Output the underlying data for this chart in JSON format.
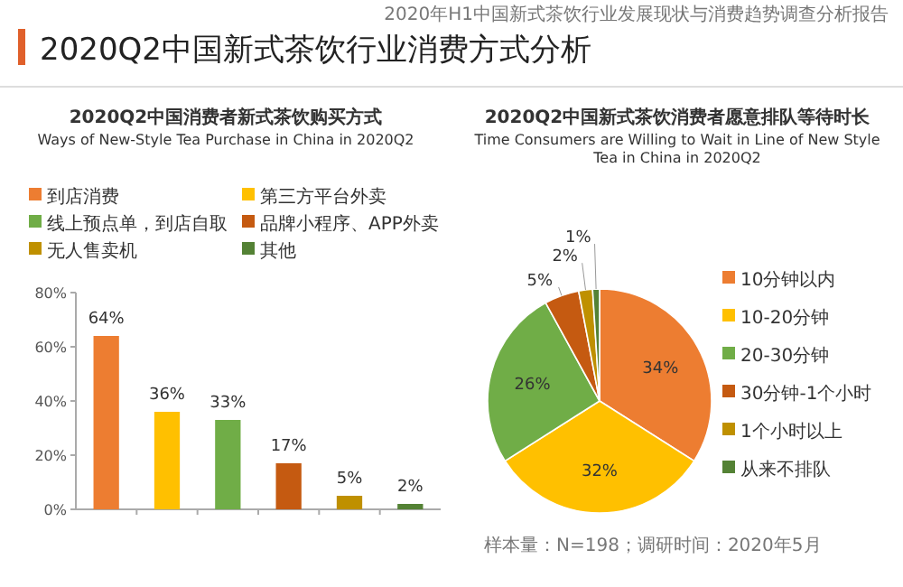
{
  "chart_data": [
    {
      "type": "other",
      "title": "2020Q2中国新式茶饮行业消费方式分析",
      "subtitle": "2020年H1中国新式茶饮行业发展现状与消费趋势调查分析报告"
    },
    {
      "type": "bar",
      "title": "2020Q2中国消费者新式茶饮购买方式",
      "subtitle": "Ways of New-Style Tea Purchase in China in 2020Q2",
      "categories": [
        null,
        null,
        null,
        null,
        null,
        null
      ],
      "series": [
        {
          "name": "到店消费",
          "color": "#ed7d31",
          "values": [
            64,
            null,
            null,
            null,
            null,
            null
          ],
          "value_labels": [
            "64%",
            null,
            null,
            null,
            null,
            null
          ]
        },
        {
          "name": "第三方平台外卖",
          "color": "#ffc000",
          "values": [
            null,
            36,
            null,
            null,
            null,
            null
          ],
          "value_labels": [
            null,
            "36%",
            null,
            null,
            null,
            null
          ]
        },
        {
          "name": "线上预点单，到店自取",
          "color": "#70ad47",
          "values": [
            null,
            null,
            33,
            null,
            null,
            null
          ],
          "value_labels": [
            null,
            null,
            "33%",
            null,
            null,
            null
          ]
        },
        {
          "name": "品牌小程序、APP外卖",
          "color": "#c55a11",
          "values": [
            null,
            null,
            null,
            17,
            null,
            null
          ],
          "value_labels": [
            null,
            null,
            null,
            "17%",
            null,
            null
          ]
        },
        {
          "name": "无人售卖机",
          "color": "#bf9000",
          "values": [
            null,
            null,
            null,
            null,
            5,
            null
          ],
          "value_labels": [
            null,
            null,
            null,
            null,
            "5%",
            null
          ]
        },
        {
          "name": "其他",
          "color": "#548235",
          "values": [
            null,
            null,
            null,
            null,
            null,
            2
          ],
          "value_labels": [
            null,
            null,
            null,
            null,
            null,
            "2%"
          ]
        }
      ],
      "ylim": [
        0,
        80
      ],
      "yticks": [
        {
          "value": 0,
          "label": "0%"
        },
        {
          "value": 20,
          "label": "20%"
        },
        {
          "value": 40,
          "label": "40%"
        },
        {
          "value": 60,
          "label": "60%"
        },
        {
          "value": 80,
          "label": "80%"
        }
      ],
      "legend": "top",
      "tick_labels": "y"
    },
    {
      "type": "pie",
      "title": "2020Q2中国新式茶饮消费者愿意排队等待时长",
      "subtitle": "Time Consumers are Willing to Wait in Line of New Style Tea in China in 2020Q2",
      "categories": [
        "10分钟以内",
        "10-20分钟",
        "20-30分钟",
        "30分钟-1个小时",
        "1个小时以上",
        "从来不排队"
      ],
      "values": [
        34,
        32,
        26,
        5,
        2,
        1
      ],
      "colors": [
        "#ed7d31",
        "#ffc000",
        "#70ad47",
        "#c55a11",
        "#bf9000",
        "#548235"
      ],
      "value_labels": [
        "34%",
        "32%",
        "26%",
        "5%",
        "2%",
        "1%"
      ],
      "legend": "right",
      "annotations": [
        "样本量：N=198；调研时间：2020年5月"
      ]
    }
  ]
}
